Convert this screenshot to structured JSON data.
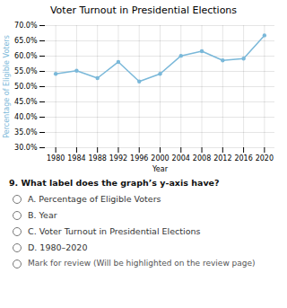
{
  "chart_data": {
    "type": "line",
    "title": "Voter Turnout in Presidential Elections",
    "xlabel": "Year",
    "ylabel": "Percentage of Eligible Voters",
    "x": [
      1980,
      1984,
      1988,
      1992,
      1996,
      2000,
      2004,
      2008,
      2012,
      2016,
      2020
    ],
    "values": [
      54.2,
      55.2,
      52.8,
      58.1,
      51.7,
      54.2,
      60.1,
      61.6,
      58.6,
      59.2,
      66.8
    ],
    "color": "#7ab8d9",
    "marker": "circle",
    "grid": true,
    "xlim": [
      1978,
      2022
    ],
    "xticks": [
      1980,
      1984,
      1988,
      1992,
      1996,
      2000,
      2004,
      2008,
      2012,
      2016,
      2020
    ],
    "ylim": [
      30.0,
      70.0
    ],
    "yticks": [
      {
        "value": 30.0,
        "label": "30.0%"
      },
      {
        "value": 35.0,
        "label": "35.0%"
      },
      {
        "value": 40.0,
        "label": "40.0%"
      },
      {
        "value": 45.0,
        "label": "45.0%"
      },
      {
        "value": 50.0,
        "label": "50.0%"
      },
      {
        "value": 55.0,
        "label": "55.0%"
      },
      {
        "value": 60.0,
        "label": "60.0%"
      },
      {
        "value": 65.0,
        "label": "65.0%"
      },
      {
        "value": 70.0,
        "label": "70.0%"
      }
    ],
    "annotations": [
      "9.  What label does the graph’s y-axis have?",
      "A. Percentage of Eligible Voters",
      "B. Year",
      "C. Voter Turnout in Presidential Elections",
      "D. 1980–2020",
      "Mark for review (Will be highlighted on the review page)"
    ]
  }
}
